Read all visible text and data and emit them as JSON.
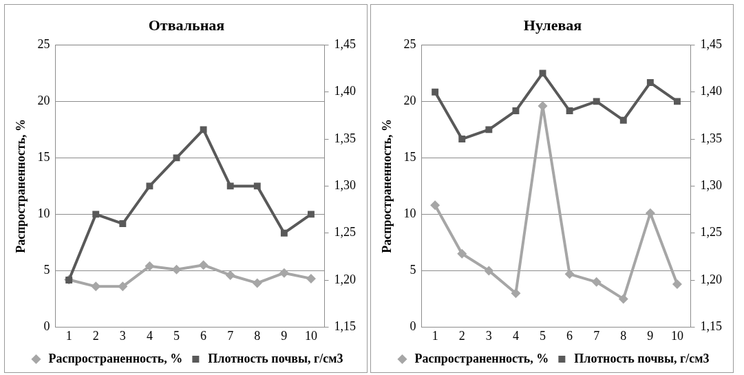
{
  "chart_data": [
    {
      "type": "line",
      "title": "Отвальная",
      "ylabel": "Распространенность, %",
      "categories": [
        "1",
        "2",
        "3",
        "4",
        "5",
        "6",
        "7",
        "8",
        "9",
        "10"
      ],
      "series": [
        {
          "name": "Распространенность, %",
          "color": "#a6a6a6",
          "marker": "diamond",
          "values": [
            4.2,
            3.6,
            3.6,
            5.4,
            5.1,
            5.5,
            4.6,
            3.9,
            4.8,
            4.3
          ]
        },
        {
          "name": "Плотность почвы, г/см3",
          "color": "#595959",
          "marker": "square",
          "axis": "y2",
          "values": [
            1.2,
            1.27,
            1.26,
            1.3,
            1.33,
            1.36,
            1.3,
            1.3,
            1.25,
            1.27
          ]
        }
      ],
      "ylim": [
        0,
        25
      ],
      "yticks": [
        0,
        5,
        10,
        15,
        20,
        25
      ],
      "y2lim": [
        1.15,
        1.45
      ],
      "y2ticks": [
        {
          "value": 1.15,
          "label": "1,15"
        },
        {
          "value": 1.2,
          "label": "1,20"
        },
        {
          "value": 1.25,
          "label": "1,25"
        },
        {
          "value": 1.3,
          "label": "1,30"
        },
        {
          "value": 1.35,
          "label": "1,35"
        },
        {
          "value": 1.4,
          "label": "1,40"
        },
        {
          "value": 1.45,
          "label": "1,45"
        }
      ],
      "grid": "y",
      "legend": "bottom",
      "line_style": "solid"
    },
    {
      "type": "line",
      "title": "Нулевая",
      "ylabel": "Распространенность, %",
      "categories": [
        "1",
        "2",
        "3",
        "4",
        "5",
        "6",
        "7",
        "8",
        "9",
        "10"
      ],
      "series": [
        {
          "name": "Распространенность, %",
          "color": "#a6a6a6",
          "marker": "diamond",
          "values": [
            10.8,
            6.5,
            5.0,
            3.0,
            19.6,
            4.7,
            4.0,
            2.5,
            10.1,
            3.8
          ]
        },
        {
          "name": "Плотность почвы, г/см3",
          "color": "#595959",
          "marker": "square",
          "axis": "y2",
          "values": [
            1.4,
            1.35,
            1.36,
            1.38,
            1.42,
            1.38,
            1.39,
            1.37,
            1.41,
            1.39
          ]
        }
      ],
      "ylim": [
        0,
        25
      ],
      "yticks": [
        0,
        5,
        10,
        15,
        20,
        25
      ],
      "y2lim": [
        1.15,
        1.45
      ],
      "y2ticks": [
        {
          "value": 1.15,
          "label": "1,15"
        },
        {
          "value": 1.2,
          "label": "1,20"
        },
        {
          "value": 1.25,
          "label": "1,25"
        },
        {
          "value": 1.3,
          "label": "1,30"
        },
        {
          "value": 1.35,
          "label": "1,35"
        },
        {
          "value": 1.4,
          "label": "1,40"
        },
        {
          "value": 1.45,
          "label": "1,45"
        }
      ],
      "grid": "y",
      "legend": "bottom",
      "line_style": "solid"
    }
  ]
}
